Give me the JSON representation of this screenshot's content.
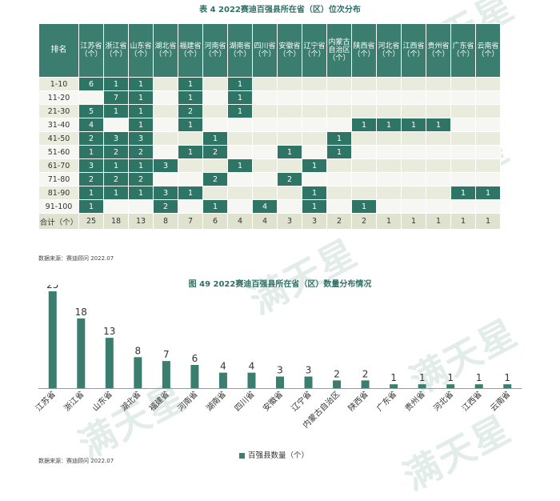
{
  "table": {
    "title": "表 4  2022赛迪百强县所在省（区）位次分布",
    "rank_header": "排名",
    "columns": [
      "江苏省（个）",
      "浙江省（个）",
      "山东省（个）",
      "湖北省（个）",
      "福建省（个）",
      "河南省（个）",
      "湖南省（个）",
      "四川省（个）",
      "安徽省（个）",
      "辽宁省（个）",
      "内蒙古自治区（个）",
      "陕西省（个）",
      "河北省（个）",
      "江西省（个）",
      "贵州省（个）",
      "广东省（个）",
      "云南省（个）"
    ],
    "rows": [
      {
        "rank": "1-10",
        "cells": [
          "6",
          "1",
          "1",
          "",
          "1",
          "",
          "1",
          "",
          "",
          "",
          "",
          "",
          "",
          "",
          "",
          "",
          ""
        ]
      },
      {
        "rank": "11-20",
        "cells": [
          "",
          "7",
          "1",
          "",
          "1",
          "",
          "1",
          "",
          "",
          "",
          "",
          "",
          "",
          "",
          "",
          "",
          ""
        ]
      },
      {
        "rank": "21-30",
        "cells": [
          "5",
          "1",
          "1",
          "",
          "2",
          "",
          "1",
          "",
          "",
          "",
          "",
          "",
          "",
          "",
          "",
          "",
          ""
        ]
      },
      {
        "rank": "31-40",
        "cells": [
          "4",
          "",
          "1",
          "",
          "1",
          "",
          "",
          "",
          "",
          "",
          "",
          "1",
          "1",
          "1",
          "1",
          "",
          ""
        ]
      },
      {
        "rank": "41-50",
        "cells": [
          "2",
          "3",
          "3",
          "",
          "",
          "1",
          "",
          "",
          "",
          "",
          "1",
          "",
          "",
          "",
          "",
          "",
          ""
        ]
      },
      {
        "rank": "51-60",
        "cells": [
          "1",
          "2",
          "2",
          "",
          "1",
          "2",
          "",
          "",
          "1",
          "",
          "1",
          "",
          "",
          "",
          "",
          "",
          ""
        ]
      },
      {
        "rank": "61-70",
        "cells": [
          "3",
          "1",
          "1",
          "3",
          "",
          "",
          "1",
          "",
          "",
          "1",
          "",
          "",
          "",
          "",
          "",
          "",
          ""
        ]
      },
      {
        "rank": "71-80",
        "cells": [
          "2",
          "2",
          "2",
          "",
          "",
          "2",
          "",
          "",
          "2",
          "",
          "",
          "",
          "",
          "",
          "",
          "",
          ""
        ]
      },
      {
        "rank": "81-90",
        "cells": [
          "1",
          "1",
          "1",
          "3",
          "1",
          "",
          "",
          "",
          "",
          "1",
          "",
          "",
          "",
          "",
          "",
          "1",
          "1"
        ]
      },
      {
        "rank": "91-100",
        "cells": [
          "1",
          "",
          "",
          "2",
          "",
          "1",
          "",
          "4",
          "",
          "1",
          "",
          "1",
          "",
          "",
          "",
          "",
          ""
        ]
      }
    ],
    "total_label": "合计（个）",
    "totals": [
      "25",
      "18",
      "13",
      "8",
      "7",
      "6",
      "4",
      "4",
      "3",
      "3",
      "2",
      "2",
      "1",
      "1",
      "1",
      "1",
      "1"
    ],
    "source": "数据来源：赛迪顾问 2022.07"
  },
  "chart_data": {
    "type": "bar",
    "title": "图 49  2022赛迪百强县所在省（区）数量分布情况",
    "categories": [
      "江苏省",
      "浙江省",
      "山东省",
      "湖北省",
      "福建省",
      "河南省",
      "湖南省",
      "四川省",
      "安徽省",
      "辽宁省",
      "内蒙古自治区",
      "陕西省",
      "广东省",
      "贵州省",
      "河北省",
      "江西省",
      "云南省"
    ],
    "series": [
      {
        "name": "百强县数量（个）",
        "values": [
          25,
          18,
          13,
          8,
          7,
          6,
          4,
          4,
          3,
          3,
          2,
          2,
          1,
          1,
          1,
          1,
          1
        ]
      }
    ],
    "ylim": [
      0,
      25
    ],
    "grid": false,
    "legend_position": "bottom",
    "bar_color": "#3b7e6f",
    "source": "数据来源：赛迪顾问 2022.07"
  },
  "watermark": "满天星"
}
